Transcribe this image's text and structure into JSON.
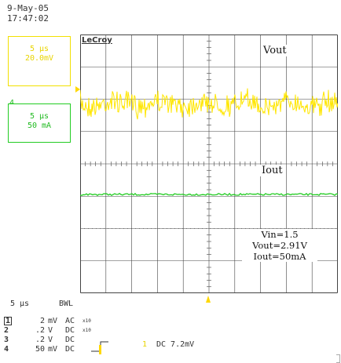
{
  "header": {
    "date": "9-May-05",
    "time": "17:47:02"
  },
  "brand": "LeCroy",
  "channel_boxes": {
    "ch1": {
      "timebase": "5 µs",
      "scale": "20.0mV",
      "color": "#f2e000"
    },
    "ch4": {
      "marker": "4",
      "timebase": "5 µs",
      "scale": "50 mA",
      "color": "#22cc22"
    }
  },
  "trace_labels": {
    "vout": "Vout",
    "iout": "Iout"
  },
  "info_box": {
    "vin": "Vin=1.5",
    "vout": "Vout=2.91V",
    "iout": "Iout=50mA"
  },
  "footer": {
    "timebase": "5 µs",
    "bwl": "BWL",
    "channels": [
      {
        "num": "1",
        "vdiv": "2",
        "unit": "mV",
        "coupling": "AC",
        "note": "x10"
      },
      {
        "num": "2",
        "vdiv": ".2",
        "unit": "V",
        "coupling": "DC",
        "note": "x10"
      },
      {
        "num": "3",
        "vdiv": ".2",
        "unit": "V",
        "coupling": "DC",
        "note": ""
      },
      {
        "num": "4",
        "vdiv": "50",
        "unit": "mV",
        "coupling": "DC",
        "note": ""
      }
    ],
    "trigger": {
      "channel": "1",
      "level": "DC 7.2mV"
    }
  },
  "colors": {
    "ch1_trace": "#ffe600",
    "ch4_trace": "#22cc22",
    "grid": "#444444"
  }
}
